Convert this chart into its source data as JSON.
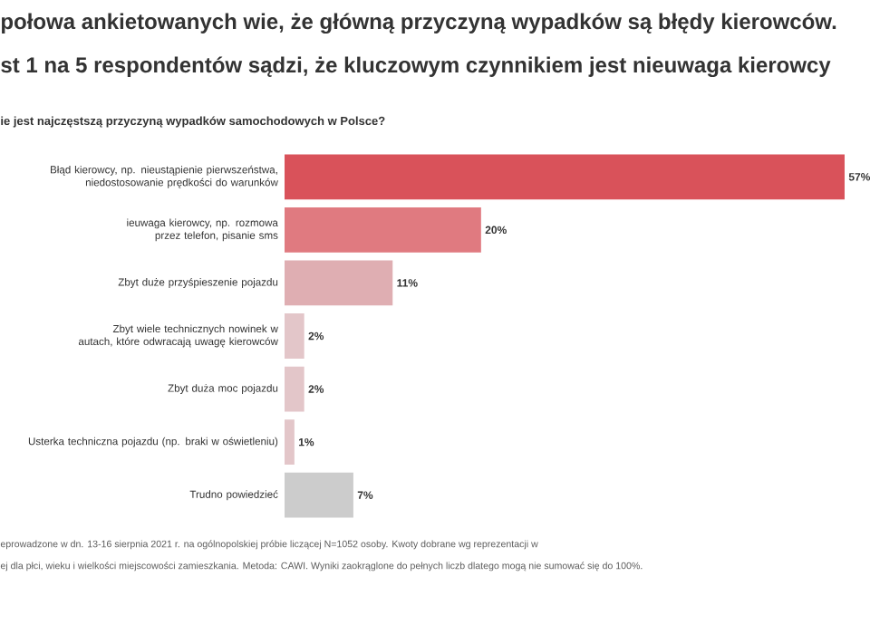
{
  "chart_data": {
    "type": "bar",
    "orientation": "horizontal",
    "title": "połowa ankietowanych wie, że główną przyczyną wypadków są błędy kierowców.",
    "subtitle": "st 1 na 5 respondentów sądzi, że kluczowym czynnikiem jest nieuwaga kierowcy",
    "categories": [
      "Błąd kierowcy, np. nieustąpienie pierwszeństwa, niedostosowanie prędkości do warunków",
      "ieuwaga kierowcy, np. rozmowa przez telefon, pisanie sms",
      "Zbyt duże przyśpieszenie pojazdu",
      "Zbyt wiele technicznych nowinek w autach, które odwracają uwagę kierowców",
      "Zbyt duża moc pojazdu",
      "Usterka techniczna pojazdu (np. braki w oświetleniu)",
      "Trudno powiedzieć"
    ],
    "values": [
      57,
      20,
      11,
      2,
      2,
      1,
      7
    ],
    "colors": [
      "#d9525a",
      "#e07a80",
      "#dfaeb2",
      "#e3c6c9",
      "#e3c6c9",
      "#e3c6c9",
      "#cccccc"
    ],
    "value_labels": [
      "57%",
      "20%",
      "11%",
      "2%",
      "2%",
      "1%",
      "7%"
    ],
    "annotations": [
      "ie jest najczęstszą przyczyną wypadków samochodowych w Polsce?",
      "eprowadzone w dn. 13-16 sierpnia 2021 r. na ogólnopolskiej próbie liczącej N=1052 osoby. Kwoty dobrane wg reprezentacji w",
      "ej dla płci, wieku i wielkości miejscowości zamieszkania. Metoda: CAWI. Wyniki zaokrąglone do pełnych liczb dlatego mogą nie sumować się do 100%."
    ]
  }
}
